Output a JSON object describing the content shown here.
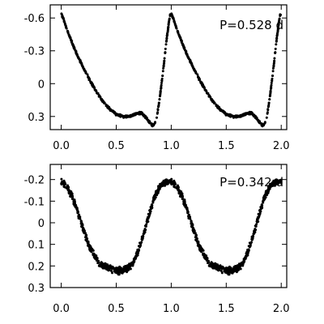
{
  "chart_data": [
    {
      "type": "scatter",
      "annotation": "P=0.528 d",
      "x_ticks": [
        "0.0",
        "0.5",
        "1.0",
        "1.5",
        "2.0"
      ],
      "y_ticks": [
        "-0.6",
        "-0.3",
        "0",
        "0.3"
      ],
      "x_tick_values": [
        0.0,
        0.5,
        1.0,
        1.5,
        2.0
      ],
      "y_tick_values": [
        -0.6,
        -0.3,
        0,
        0.3
      ],
      "xlim": [
        -0.1,
        2.05
      ],
      "ylim": [
        -0.72,
        0.42
      ],
      "y_inverted": true,
      "grid": false,
      "marker_color": "#000000",
      "phase_curve": [
        [
          0.0,
          -0.64
        ],
        [
          0.02,
          -0.59
        ],
        [
          0.05,
          -0.5
        ],
        [
          0.1,
          -0.37
        ],
        [
          0.15,
          -0.25
        ],
        [
          0.2,
          -0.15
        ],
        [
          0.25,
          -0.05
        ],
        [
          0.3,
          0.04
        ],
        [
          0.35,
          0.12
        ],
        [
          0.4,
          0.19
        ],
        [
          0.45,
          0.24
        ],
        [
          0.5,
          0.28
        ],
        [
          0.55,
          0.3
        ],
        [
          0.6,
          0.3
        ],
        [
          0.65,
          0.29
        ],
        [
          0.7,
          0.27
        ],
        [
          0.73,
          0.27
        ],
        [
          0.76,
          0.3
        ],
        [
          0.8,
          0.35
        ],
        [
          0.83,
          0.38
        ],
        [
          0.85,
          0.37
        ],
        [
          0.87,
          0.3
        ],
        [
          0.9,
          0.1
        ],
        [
          0.93,
          -0.15
        ],
        [
          0.96,
          -0.42
        ],
        [
          0.98,
          -0.57
        ],
        [
          0.99,
          -0.63
        ]
      ]
    },
    {
      "type": "scatter",
      "annotation": "P=0.342 d",
      "x_ticks": [
        "0.0",
        "0.5",
        "1.0",
        "1.5",
        "2.0"
      ],
      "y_ticks": [
        "-0.2",
        "-0.1",
        "0",
        "0.1",
        "0.2",
        "0.3"
      ],
      "x_tick_values": [
        0.0,
        0.5,
        1.0,
        1.5,
        2.0
      ],
      "y_tick_values": [
        -0.2,
        -0.1,
        0,
        0.1,
        0.2,
        0.3
      ],
      "xlim": [
        -0.1,
        2.05
      ],
      "ylim": [
        -0.27,
        0.3
      ],
      "y_inverted": true,
      "grid": false,
      "marker_color": "#000000",
      "phase_curve": [
        [
          0.0,
          -0.19
        ],
        [
          0.05,
          -0.17
        ],
        [
          0.1,
          -0.12
        ],
        [
          0.15,
          -0.05
        ],
        [
          0.2,
          0.03
        ],
        [
          0.25,
          0.1
        ],
        [
          0.3,
          0.15
        ],
        [
          0.35,
          0.19
        ],
        [
          0.4,
          0.2
        ],
        [
          0.45,
          0.21
        ],
        [
          0.5,
          0.22
        ],
        [
          0.55,
          0.22
        ],
        [
          0.6,
          0.21
        ],
        [
          0.65,
          0.19
        ],
        [
          0.7,
          0.13
        ],
        [
          0.75,
          0.05
        ],
        [
          0.8,
          -0.04
        ],
        [
          0.85,
          -0.12
        ],
        [
          0.9,
          -0.17
        ],
        [
          0.95,
          -0.19
        ],
        [
          0.99,
          -0.19
        ]
      ]
    }
  ]
}
